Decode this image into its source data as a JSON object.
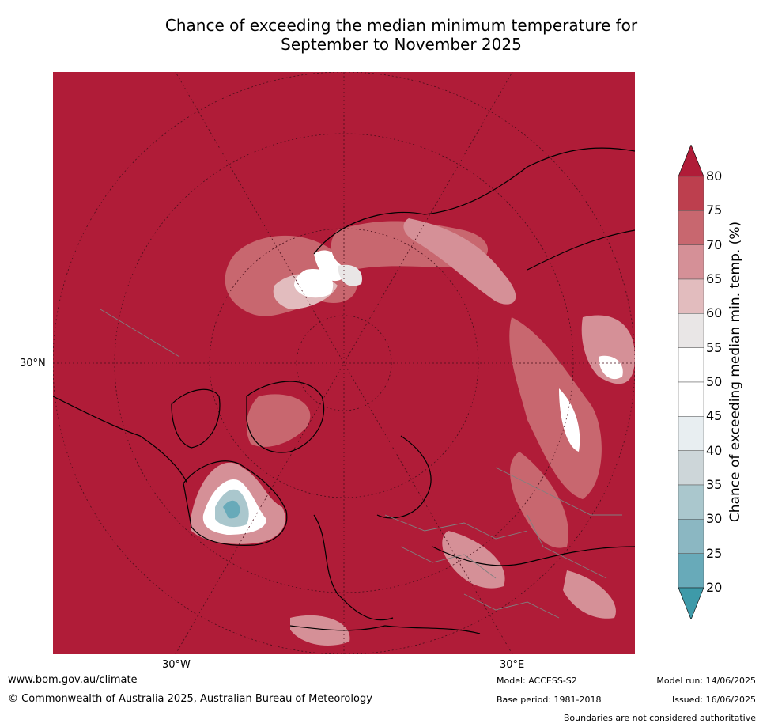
{
  "title": {
    "line1": "Chance of exceeding the median minimum temperature for",
    "line2": "September to November 2025"
  },
  "map": {
    "projection": "north-polar-stereographic",
    "lat_labels": [
      "30°N"
    ],
    "lon_labels": [
      "30°W",
      "30°E"
    ],
    "dominant_category": "80+",
    "notable_low_region": "Hudson Bay region (20–40%)",
    "colors": {
      "background": "#b01c38",
      "coastline": "#000000",
      "borders": "#808080",
      "graticule": "#555555"
    }
  },
  "colorbar": {
    "label": "Chance of exceeding median min. temp. (%)",
    "ticks": [
      "80",
      "75",
      "70",
      "65",
      "60",
      "55",
      "50",
      "45",
      "40",
      "35",
      "30",
      "25",
      "20"
    ],
    "bands": [
      {
        "range": "80+",
        "color": "#b01c38"
      },
      {
        "range": "75-80",
        "color": "#bd3f4e"
      },
      {
        "range": "70-75",
        "color": "#c8676f"
      },
      {
        "range": "65-70",
        "color": "#d59097"
      },
      {
        "range": "60-65",
        "color": "#e2bcbe"
      },
      {
        "range": "55-60",
        "color": "#e9e6e6"
      },
      {
        "range": "50-55",
        "color": "#ffffff"
      },
      {
        "range": "45-50",
        "color": "#ffffff"
      },
      {
        "range": "40-45",
        "color": "#e8eef1"
      },
      {
        "range": "35-40",
        "color": "#cdd6d9"
      },
      {
        "range": "30-35",
        "color": "#aac7cd"
      },
      {
        "range": "25-30",
        "color": "#8bb7c2"
      },
      {
        "range": "20-25",
        "color": "#68aab9"
      },
      {
        "range": "<20",
        "color": "#3e9aa9"
      }
    ]
  },
  "footer": {
    "url": "www.bom.gov.au/climate",
    "copyright": "© Commonwealth of Australia 2025, Australian Bureau of Meteorology",
    "model": "Model: ACCESS-S2",
    "base_period": "Base period: 1981-2018",
    "model_run": "Model run: 14/06/2025",
    "issued": "Issued: 16/06/2025",
    "disclaimer": "Boundaries are not considered authoritative"
  }
}
